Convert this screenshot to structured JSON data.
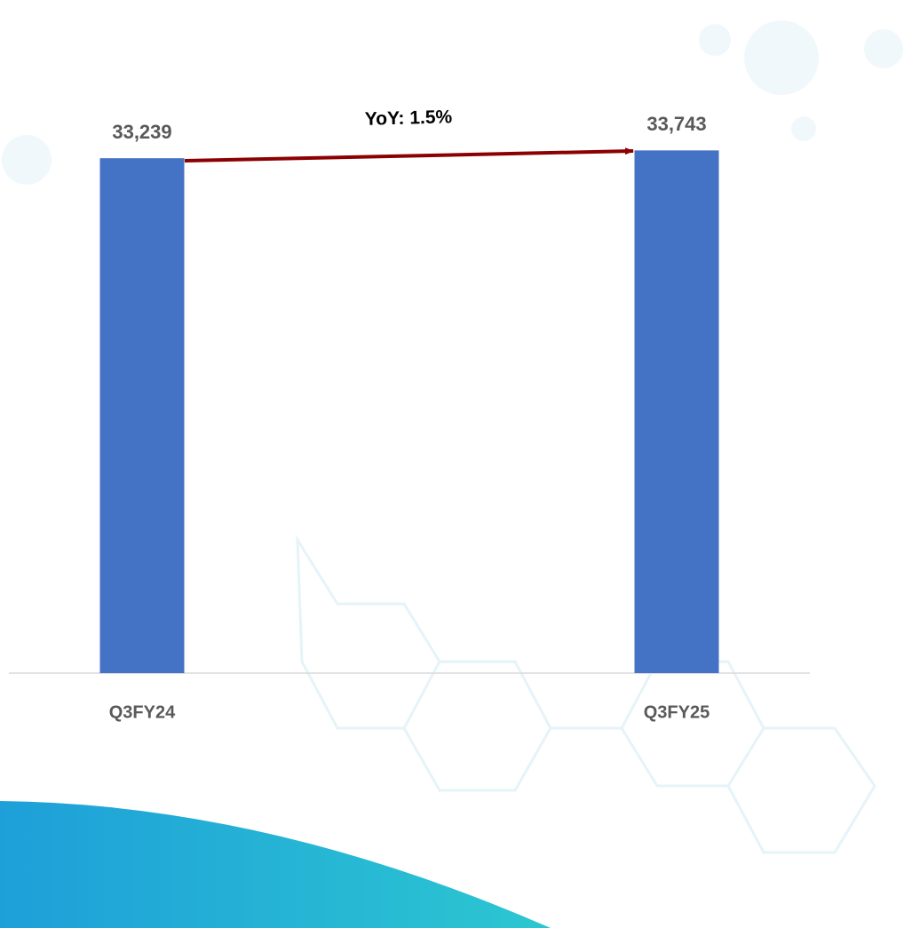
{
  "chart_data": {
    "type": "bar",
    "categories": [
      "Q3FY24",
      "Q3FY25"
    ],
    "values": [
      33239,
      33743
    ],
    "value_labels": [
      "33,239",
      "33,743"
    ],
    "color": "#4472c4",
    "ylim": [
      0,
      36000
    ],
    "annotation": "YoY: 1.5%"
  }
}
